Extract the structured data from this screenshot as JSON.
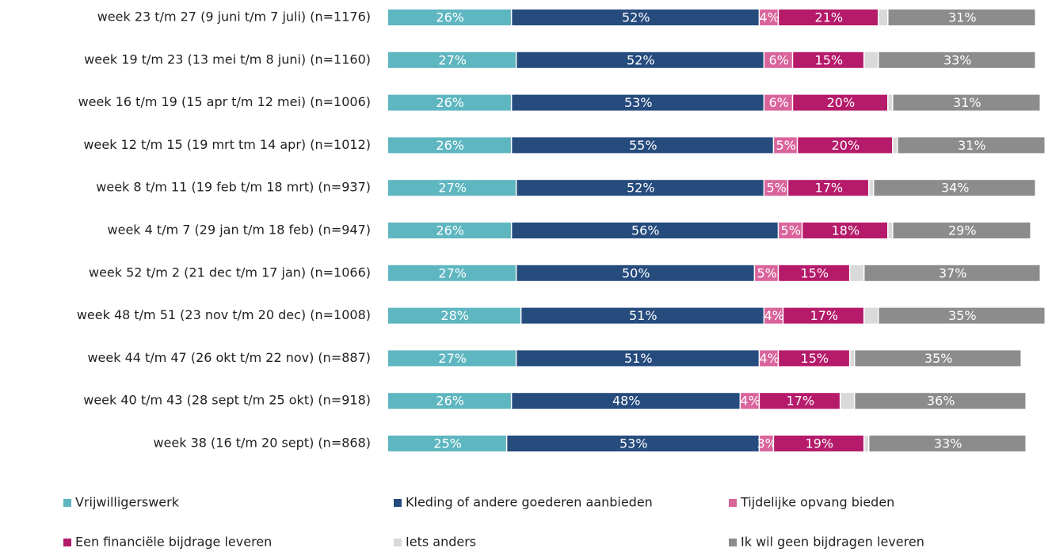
{
  "chart_data": {
    "type": "stacked-bar-horizontal",
    "categories": [
      "week 23 t/m 27 (9 juni t/m 7 juli) (n=1176)",
      "week 19 t/m 23 (13 mei t/m 8 juni) (n=1160)",
      "week 16 t/m 19 (15 apr t/m 12 mei) (n=1006)",
      "week 12 t/m 15 (19 mrt tm 14 apr) (n=1012)",
      "week 8 t/m 11 (19 feb t/m 18 mrt) (n=937)",
      "week 4 t/m 7 (29 jan t/m 18 feb) (n=947)",
      "week 52 t/m 2 (21 dec t/m 17 jan) (n=1066)",
      "week 48 t/m 51 (23 nov t/m 20 dec) (n=1008)",
      "week 44 t/m 47 (26 okt t/m 22 nov) (n=887)",
      "week 40 t/m 43 (28 sept t/m 25 okt) (n=918)",
      "week 38 (16 t/m 20 sept) (n=868)"
    ],
    "series": [
      {
        "name": "Vrijwilligerswerk",
        "color": "#5eb6c0",
        "values": [
          26,
          27,
          26,
          26,
          27,
          26,
          27,
          28,
          27,
          26,
          25
        ],
        "value_labels": [
          "26%",
          "27%",
          "26%",
          "26%",
          "27%",
          "26%",
          "27%",
          "28%",
          "27%",
          "26%",
          "25%"
        ]
      },
      {
        "name": "Kleding of andere goederen aanbieden",
        "color": "#264b7d",
        "values": [
          52,
          52,
          53,
          55,
          52,
          56,
          50,
          51,
          51,
          48,
          53
        ],
        "value_labels": [
          "52%",
          "52%",
          "53%",
          "55%",
          "52%",
          "56%",
          "50%",
          "51%",
          "51%",
          "48%",
          "53%"
        ]
      },
      {
        "name": "Tijdelijke opvang bieden",
        "color": "#d9649b",
        "values": [
          4,
          6,
          6,
          5,
          5,
          5,
          5,
          4,
          4,
          4,
          3
        ],
        "value_labels": [
          "4%",
          "6%",
          "6%",
          "5%",
          "5%",
          "5%",
          "5%",
          "4%",
          "4%",
          "4%",
          "3%"
        ]
      },
      {
        "name": "Een financiële bijdrage leveren",
        "color": "#b51b6a",
        "values": [
          21,
          15,
          20,
          20,
          17,
          18,
          15,
          17,
          15,
          17,
          19
        ],
        "value_labels": [
          "21%",
          "15%",
          "20%",
          "20%",
          "17%",
          "18%",
          "15%",
          "17%",
          "15%",
          "17%",
          "19%"
        ]
      },
      {
        "name": "Iets anders",
        "color": "#d9d9d9",
        "values": [
          2,
          3,
          1,
          1,
          1,
          1,
          3,
          3,
          1,
          3,
          1
        ]
      },
      {
        "name": "Ik wil geen bijdragen leveren",
        "color": "#8c8c8c",
        "values": [
          31,
          33,
          31,
          31,
          34,
          29,
          37,
          35,
          35,
          36,
          33
        ],
        "value_labels": [
          "31%",
          "33%",
          "31%",
          "31%",
          "34%",
          "29%",
          "37%",
          "35%",
          "35%",
          "36%",
          "33%"
        ]
      }
    ]
  }
}
